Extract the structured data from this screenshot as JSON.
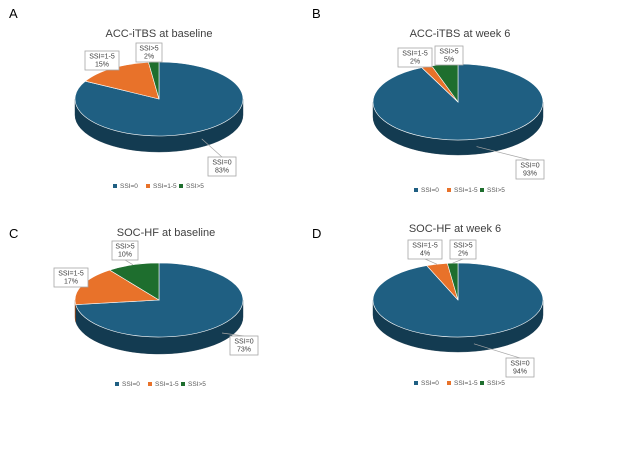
{
  "panel_letters": [
    "A",
    "B",
    "C",
    "D"
  ],
  "colors": {
    "SSI=0": "#1f5f82",
    "SSI=1-5": "#e8722a",
    "SSI>5": "#1e6e2e"
  },
  "chart_data": [
    {
      "type": "pie",
      "title": "ACC-iTBS at baseline",
      "categories": [
        "SSI=0",
        "SSI=1-5",
        "SSI>5"
      ],
      "values": [
        83,
        15,
        2
      ],
      "data_labels": [
        {
          "line1": "SSI=0",
          "line2": "83%"
        },
        {
          "line1": "SSI=1-5",
          "line2": "15%"
        },
        {
          "line1": "SSI>5",
          "line2": "2%"
        }
      ],
      "legend": [
        "SSI=0",
        "SSI=1-5",
        "SSI>5"
      ],
      "legend_position": "bottom"
    },
    {
      "type": "pie",
      "title": "ACC-iTBS at week 6",
      "categories": [
        "SSI=0",
        "SSI=1-5",
        "SSI>5"
      ],
      "values": [
        93,
        2,
        5
      ],
      "data_labels": [
        {
          "line1": "SSI=0",
          "line2": "93%"
        },
        {
          "line1": "SSI=1-5",
          "line2": "2%"
        },
        {
          "line1": "SSI>5",
          "line2": "5%"
        }
      ],
      "legend": [
        "SSI=0",
        "SSI=1-5",
        "SSI>5"
      ],
      "legend_position": "bottom"
    },
    {
      "type": "pie",
      "title": "SOC-HF at baseline",
      "categories": [
        "SSI=0",
        "SSI=1-5",
        "SSI>5"
      ],
      "values": [
        73,
        17,
        10
      ],
      "data_labels": [
        {
          "line1": "SSI=0",
          "line2": "73%"
        },
        {
          "line1": "SSI=1-5",
          "line2": "17%"
        },
        {
          "line1": "SSI>5",
          "line2": "10%"
        }
      ],
      "legend": [
        "SSI=0",
        "SSI=1-5",
        "SSI>5"
      ],
      "legend_position": "bottom"
    },
    {
      "type": "pie",
      "title": "SOC-HF at week 6",
      "categories": [
        "SSI=0",
        "SSI=1-5",
        "SSI>5"
      ],
      "values": [
        94,
        4,
        2
      ],
      "data_labels": [
        {
          "line1": "SSI=0",
          "line2": "94%"
        },
        {
          "line1": "SSI=1-5",
          "line2": "4%"
        },
        {
          "line1": "SSI>5",
          "line2": "2%"
        }
      ],
      "legend": [
        "SSI=0",
        "SSI=1-5",
        "SSI>5"
      ],
      "legend_position": "bottom"
    }
  ]
}
